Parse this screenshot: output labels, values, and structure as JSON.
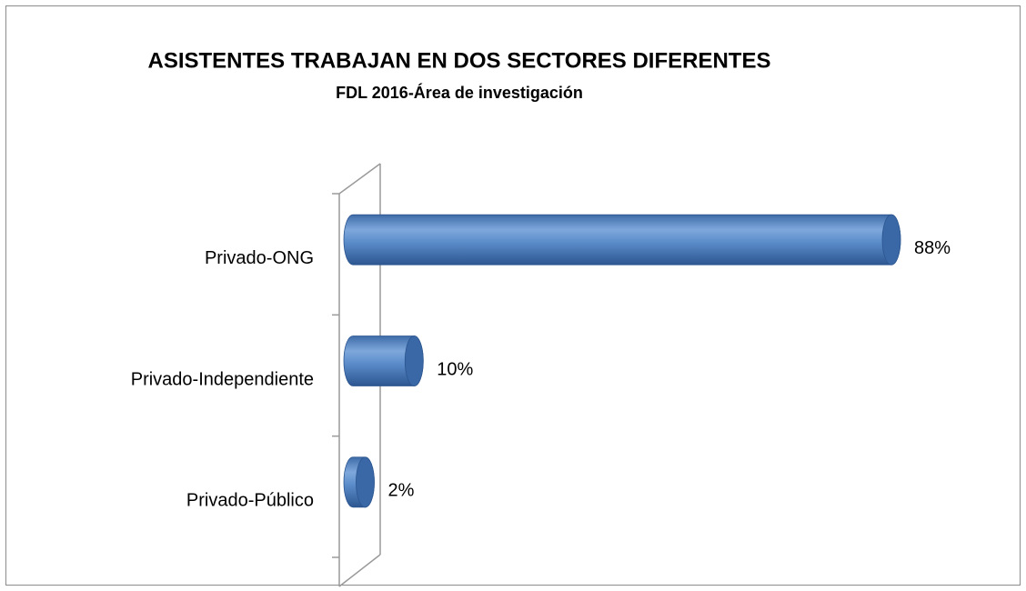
{
  "chart_data": {
    "type": "bar",
    "orientation": "horizontal",
    "title": "ASISTENTES TRABAJAN EN DOS SECTORES DIFERENTES",
    "subtitle": "FDL 2016-Área de investigación",
    "categories": [
      "Privado-ONG",
      "Privado-Independiente",
      "Privado-Público"
    ],
    "values": [
      88,
      10,
      2
    ],
    "value_labels": [
      "88%",
      "10%",
      "2%"
    ],
    "color": "#4f81bd"
  }
}
